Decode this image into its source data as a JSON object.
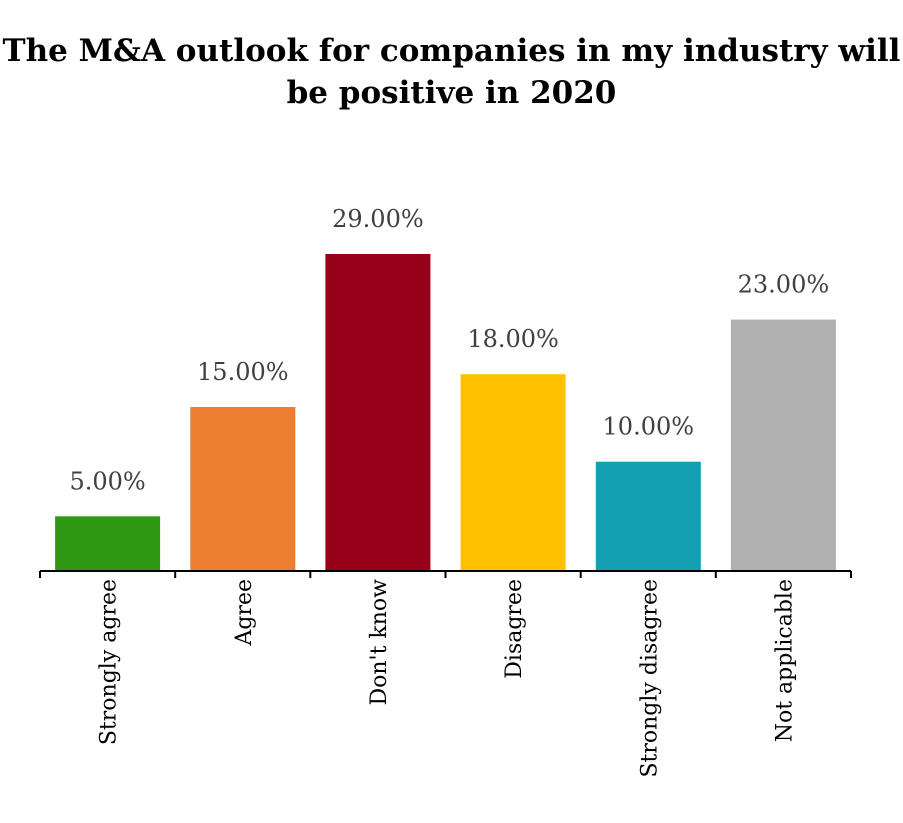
{
  "chart_data": {
    "type": "bar",
    "title": "The M&A outlook for companies in my industry will be positive in 2020",
    "xlabel": "",
    "ylabel": "",
    "categories": [
      "Strongly agree",
      "Agree",
      "Don't know",
      "Disagree",
      "Strongly disagree",
      "Not applicable"
    ],
    "values": [
      5,
      15,
      29,
      18,
      10,
      23
    ],
    "value_labels": [
      "5.00%",
      "15.00%",
      "29.00%",
      "18.00%",
      "10.00%",
      "23.00%"
    ],
    "colors": [
      "#2e9910",
      "#ed7d31",
      "#960018",
      "#ffc000",
      "#149fb3",
      "#b0b0b0"
    ],
    "ylim": [
      0,
      29
    ],
    "grid": false,
    "legend": "none"
  }
}
